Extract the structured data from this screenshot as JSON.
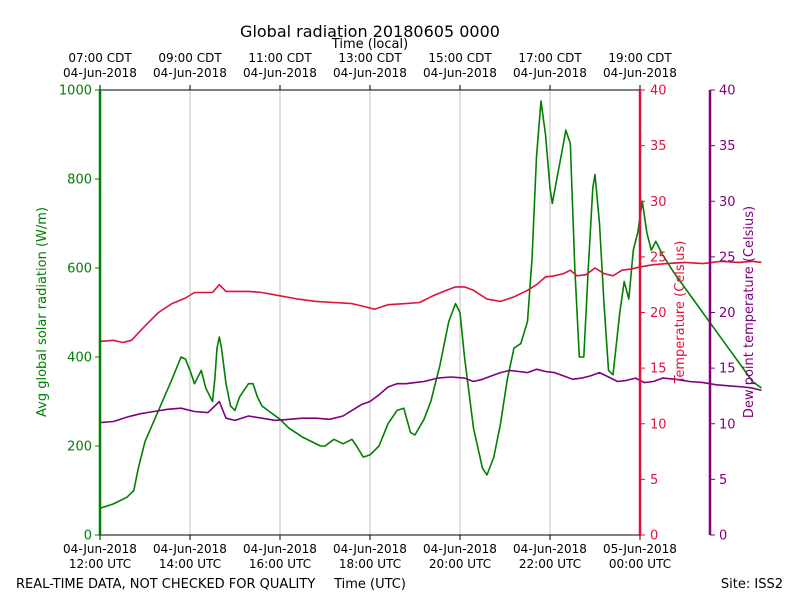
{
  "chart_data": {
    "type": "line",
    "title": "Global radiation 20180605 0000",
    "top_axis_label": "Time (local)",
    "xlabel": "Time (UTC)",
    "footer_left": "REAL-TIME DATA, NOT CHECKED FOR QUALITY",
    "footer_right": "Site: ISS2",
    "x_range_hours_utc": [
      12,
      24
    ],
    "bottom_ticks": [
      {
        "hour": 12,
        "line1": "04-Jun-2018",
        "line2": "12:00 UTC"
      },
      {
        "hour": 14,
        "line1": "04-Jun-2018",
        "line2": "14:00 UTC"
      },
      {
        "hour": 16,
        "line1": "04-Jun-2018",
        "line2": "16:00 UTC"
      },
      {
        "hour": 18,
        "line1": "04-Jun-2018",
        "line2": "18:00 UTC"
      },
      {
        "hour": 20,
        "line1": "04-Jun-2018",
        "line2": "20:00 UTC"
      },
      {
        "hour": 22,
        "line1": "04-Jun-2018",
        "line2": "22:00 UTC"
      },
      {
        "hour": 24,
        "line1": "05-Jun-2018",
        "line2": "00:00 UTC"
      }
    ],
    "top_ticks": [
      {
        "hour": 12,
        "line1": "07:00 CDT",
        "line2": "04-Jun-2018"
      },
      {
        "hour": 14,
        "line1": "09:00 CDT",
        "line2": "04-Jun-2018"
      },
      {
        "hour": 16,
        "line1": "11:00 CDT",
        "line2": "04-Jun-2018"
      },
      {
        "hour": 18,
        "line1": "13:00 CDT",
        "line2": "04-Jun-2018"
      },
      {
        "hour": 20,
        "line1": "15:00 CDT",
        "line2": "04-Jun-2018"
      },
      {
        "hour": 22,
        "line1": "17:00 CDT",
        "line2": "04-Jun-2018"
      },
      {
        "hour": 24,
        "line1": "19:00 CDT",
        "line2": "04-Jun-2018"
      }
    ],
    "vertical_grid": true,
    "axes": {
      "radiation": {
        "label": "Avg global solar radiation (W/m)",
        "range": [
          0,
          1000
        ],
        "ticks": [
          0,
          200,
          400,
          600,
          800,
          1000
        ],
        "color": "#008000"
      },
      "temperature": {
        "label": "Temperature (Celsius)",
        "range": [
          0,
          40
        ],
        "ticks": [
          0,
          5,
          10,
          15,
          20,
          25,
          30,
          35,
          40
        ],
        "color": "#dc143c"
      },
      "dewpoint": {
        "label": "Dew point temperature (Celsius)",
        "range": [
          0,
          40
        ],
        "ticks": [
          0,
          5,
          10,
          15,
          20,
          25,
          30,
          35,
          40
        ],
        "color": "#800080"
      }
    },
    "series": [
      {
        "key": "radiation",
        "color": "#008000",
        "points": [
          [
            12.0,
            60
          ],
          [
            12.3,
            70
          ],
          [
            12.6,
            85
          ],
          [
            12.75,
            100
          ],
          [
            12.85,
            150
          ],
          [
            13.0,
            210
          ],
          [
            13.3,
            280
          ],
          [
            13.6,
            350
          ],
          [
            13.8,
            400
          ],
          [
            13.9,
            395
          ],
          [
            14.0,
            370
          ],
          [
            14.1,
            340
          ],
          [
            14.25,
            370
          ],
          [
            14.35,
            330
          ],
          [
            14.5,
            300
          ],
          [
            14.55,
            350
          ],
          [
            14.6,
            420
          ],
          [
            14.65,
            445
          ],
          [
            14.7,
            420
          ],
          [
            14.8,
            340
          ],
          [
            14.9,
            290
          ],
          [
            15.0,
            280
          ],
          [
            15.1,
            310
          ],
          [
            15.3,
            340
          ],
          [
            15.4,
            340
          ],
          [
            15.5,
            310
          ],
          [
            15.6,
            290
          ],
          [
            15.8,
            275
          ],
          [
            16.0,
            260
          ],
          [
            16.2,
            240
          ],
          [
            16.5,
            220
          ],
          [
            16.9,
            200
          ],
          [
            17.0,
            200
          ],
          [
            17.2,
            215
          ],
          [
            17.4,
            205
          ],
          [
            17.6,
            215
          ],
          [
            17.7,
            200
          ],
          [
            17.85,
            175
          ],
          [
            18.0,
            180
          ],
          [
            18.2,
            200
          ],
          [
            18.4,
            250
          ],
          [
            18.6,
            280
          ],
          [
            18.75,
            285
          ],
          [
            18.9,
            230
          ],
          [
            19.0,
            225
          ],
          [
            19.2,
            260
          ],
          [
            19.35,
            300
          ],
          [
            19.55,
            380
          ],
          [
            19.75,
            480
          ],
          [
            19.9,
            520
          ],
          [
            20.0,
            500
          ],
          [
            20.1,
            400
          ],
          [
            20.3,
            240
          ],
          [
            20.5,
            150
          ],
          [
            20.6,
            135
          ],
          [
            20.75,
            175
          ],
          [
            20.9,
            250
          ],
          [
            21.05,
            350
          ],
          [
            21.2,
            420
          ],
          [
            21.35,
            430
          ],
          [
            21.5,
            480
          ],
          [
            21.6,
            620
          ],
          [
            21.7,
            850
          ],
          [
            21.8,
            975
          ],
          [
            21.9,
            900
          ],
          [
            22.0,
            780
          ],
          [
            22.05,
            745
          ],
          [
            22.15,
            800
          ],
          [
            22.3,
            880
          ],
          [
            22.35,
            910
          ],
          [
            22.45,
            880
          ],
          [
            22.55,
            600
          ],
          [
            22.65,
            400
          ],
          [
            22.75,
            400
          ],
          [
            22.85,
            600
          ],
          [
            22.95,
            780
          ],
          [
            23.0,
            810
          ],
          [
            23.1,
            700
          ],
          [
            23.2,
            520
          ],
          [
            23.3,
            370
          ],
          [
            23.4,
            360
          ],
          [
            23.55,
            500
          ],
          [
            23.65,
            570
          ],
          [
            23.75,
            530
          ],
          [
            23.85,
            640
          ],
          [
            23.95,
            680
          ],
          [
            24.05,
            750
          ],
          [
            24.15,
            680
          ],
          [
            24.25,
            640
          ],
          [
            24.35,
            660
          ],
          [
            24.5,
            630
          ],
          [
            24.75,
            590
          ],
          [
            25.0,
            555
          ],
          [
            25.25,
            520
          ],
          [
            25.5,
            485
          ],
          [
            25.75,
            450
          ],
          [
            26.0,
            415
          ],
          [
            26.25,
            380
          ],
          [
            26.5,
            345
          ],
          [
            26.7,
            330
          ]
        ]
      },
      {
        "key": "temperature",
        "color": "#dc143c",
        "points": [
          [
            12.0,
            17.4
          ],
          [
            12.3,
            17.5
          ],
          [
            12.5,
            17.3
          ],
          [
            12.7,
            17.5
          ],
          [
            13.0,
            18.8
          ],
          [
            13.3,
            20.0
          ],
          [
            13.6,
            20.8
          ],
          [
            13.9,
            21.3
          ],
          [
            14.1,
            21.8
          ],
          [
            14.3,
            21.8
          ],
          [
            14.5,
            21.8
          ],
          [
            14.65,
            22.5
          ],
          [
            14.8,
            21.9
          ],
          [
            15.0,
            21.9
          ],
          [
            15.3,
            21.9
          ],
          [
            15.6,
            21.8
          ],
          [
            16.0,
            21.5
          ],
          [
            16.4,
            21.2
          ],
          [
            16.8,
            21.0
          ],
          [
            17.2,
            20.9
          ],
          [
            17.6,
            20.8
          ],
          [
            17.9,
            20.5
          ],
          [
            18.1,
            20.3
          ],
          [
            18.4,
            20.7
          ],
          [
            18.8,
            20.8
          ],
          [
            19.1,
            20.9
          ],
          [
            19.4,
            21.5
          ],
          [
            19.7,
            22.0
          ],
          [
            19.9,
            22.3
          ],
          [
            20.1,
            22.3
          ],
          [
            20.3,
            22.0
          ],
          [
            20.6,
            21.2
          ],
          [
            20.9,
            21.0
          ],
          [
            21.2,
            21.4
          ],
          [
            21.5,
            22.0
          ],
          [
            21.7,
            22.5
          ],
          [
            21.9,
            23.2
          ],
          [
            22.1,
            23.3
          ],
          [
            22.3,
            23.5
          ],
          [
            22.45,
            23.8
          ],
          [
            22.6,
            23.3
          ],
          [
            22.8,
            23.4
          ],
          [
            23.0,
            24.0
          ],
          [
            23.2,
            23.5
          ],
          [
            23.4,
            23.3
          ],
          [
            23.6,
            23.8
          ],
          [
            23.8,
            23.9
          ],
          [
            24.0,
            24.1
          ],
          [
            24.3,
            24.3
          ],
          [
            24.6,
            24.4
          ],
          [
            25.0,
            24.5
          ],
          [
            25.4,
            24.4
          ],
          [
            25.8,
            24.6
          ],
          [
            26.2,
            24.5
          ],
          [
            26.5,
            24.6
          ],
          [
            26.7,
            24.5
          ]
        ]
      },
      {
        "key": "dewpoint",
        "color": "#800080",
        "points": [
          [
            12.0,
            10.1
          ],
          [
            12.3,
            10.2
          ],
          [
            12.6,
            10.6
          ],
          [
            12.9,
            10.9
          ],
          [
            13.2,
            11.1
          ],
          [
            13.5,
            11.3
          ],
          [
            13.8,
            11.4
          ],
          [
            14.1,
            11.1
          ],
          [
            14.4,
            11.0
          ],
          [
            14.55,
            11.6
          ],
          [
            14.65,
            12.0
          ],
          [
            14.8,
            10.5
          ],
          [
            15.0,
            10.3
          ],
          [
            15.3,
            10.7
          ],
          [
            15.6,
            10.5
          ],
          [
            15.9,
            10.3
          ],
          [
            16.2,
            10.4
          ],
          [
            16.5,
            10.5
          ],
          [
            16.8,
            10.5
          ],
          [
            17.1,
            10.4
          ],
          [
            17.4,
            10.7
          ],
          [
            17.6,
            11.2
          ],
          [
            17.8,
            11.7
          ],
          [
            18.0,
            12.0
          ],
          [
            18.2,
            12.6
          ],
          [
            18.4,
            13.3
          ],
          [
            18.6,
            13.6
          ],
          [
            18.8,
            13.6
          ],
          [
            19.0,
            13.7
          ],
          [
            19.2,
            13.8
          ],
          [
            19.5,
            14.1
          ],
          [
            19.8,
            14.2
          ],
          [
            20.1,
            14.1
          ],
          [
            20.3,
            13.8
          ],
          [
            20.5,
            14.0
          ],
          [
            20.7,
            14.3
          ],
          [
            20.9,
            14.6
          ],
          [
            21.1,
            14.8
          ],
          [
            21.3,
            14.7
          ],
          [
            21.5,
            14.6
          ],
          [
            21.7,
            14.9
          ],
          [
            21.9,
            14.7
          ],
          [
            22.1,
            14.6
          ],
          [
            22.3,
            14.3
          ],
          [
            22.5,
            14.0
          ],
          [
            22.7,
            14.1
          ],
          [
            22.9,
            14.3
          ],
          [
            23.1,
            14.6
          ],
          [
            23.3,
            14.2
          ],
          [
            23.5,
            13.8
          ],
          [
            23.7,
            13.9
          ],
          [
            23.9,
            14.1
          ],
          [
            24.1,
            13.7
          ],
          [
            24.3,
            13.8
          ],
          [
            24.5,
            14.1
          ],
          [
            24.8,
            14.0
          ],
          [
            25.1,
            13.8
          ],
          [
            25.4,
            13.7
          ],
          [
            25.7,
            13.5
          ],
          [
            26.0,
            13.4
          ],
          [
            26.3,
            13.3
          ],
          [
            26.5,
            13.2
          ],
          [
            26.7,
            13.0
          ]
        ]
      }
    ]
  }
}
